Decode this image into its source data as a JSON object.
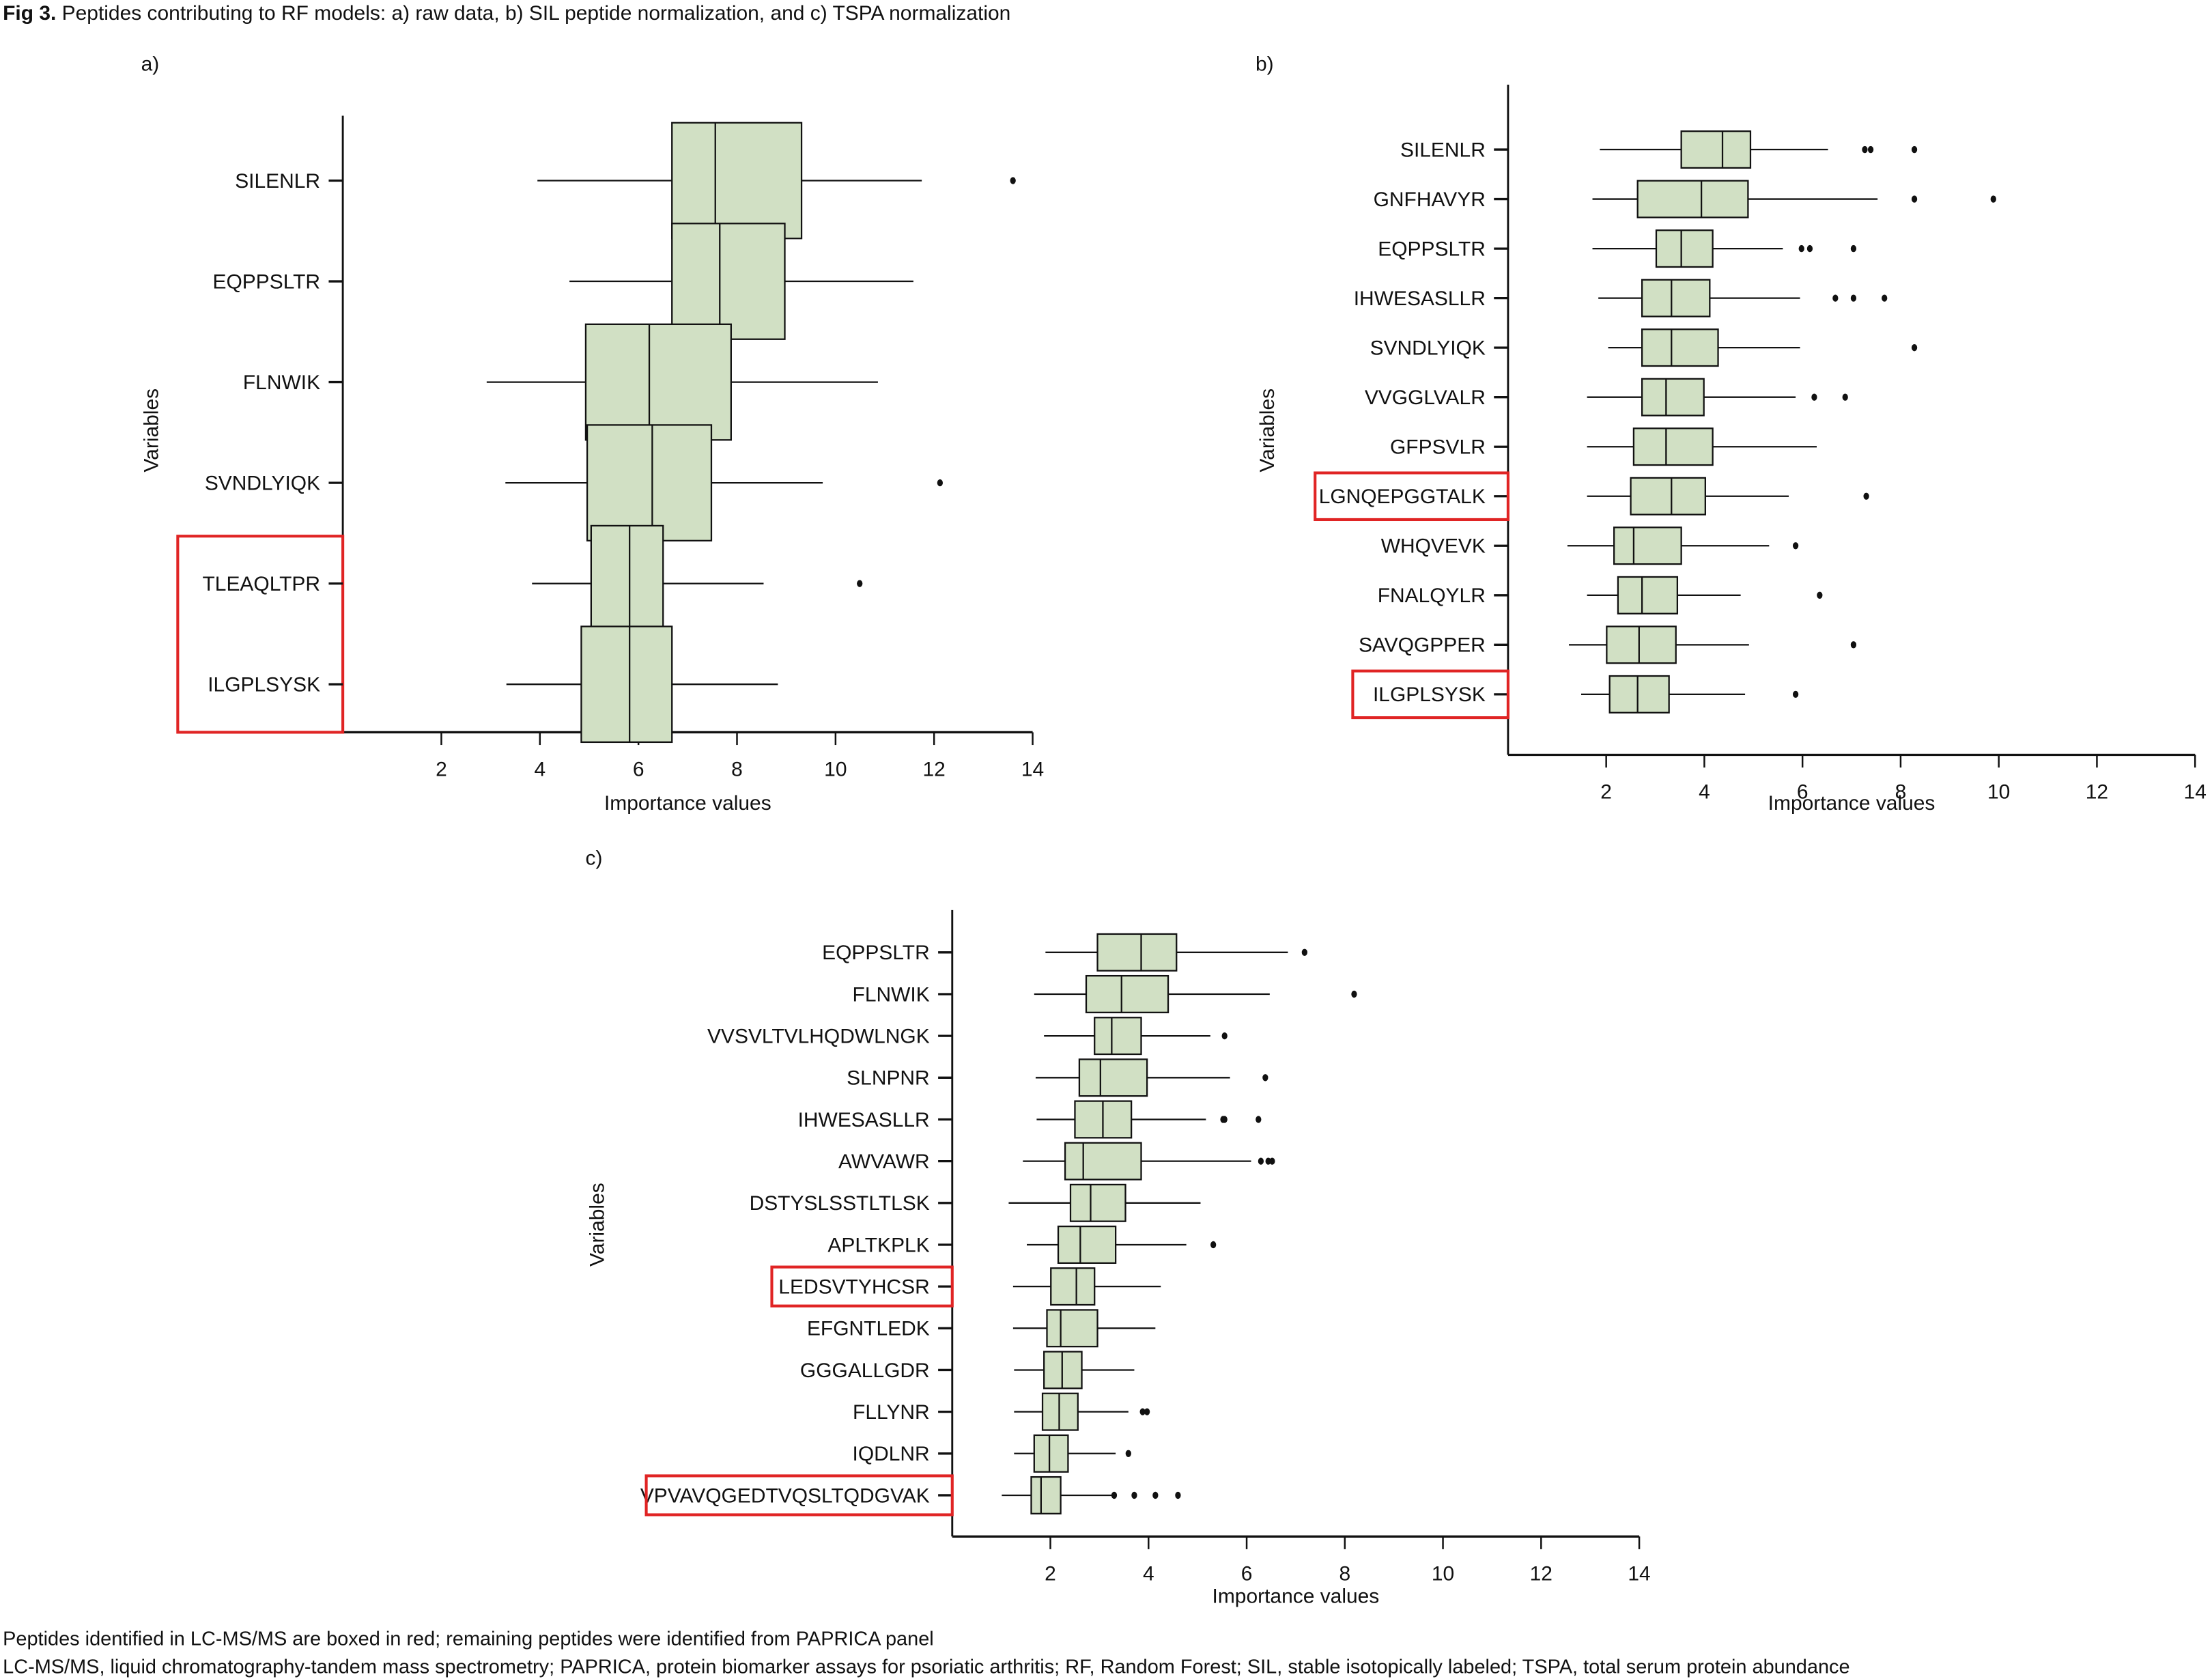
{
  "figure": {
    "title_bold": "Fig 3.",
    "title_rest": " Peptides contributing to RF models: a) raw data, b) SIL peptide normalization, and c) TSPA normalization",
    "footnotes": [
      "Peptides identified in LC-MS/MS are boxed in red; remaining peptides were identified from PAPRICA panel",
      "LC-MS/MS, liquid chromatography-tandem mass spectrometry; PAPRICA, protein biomarker assays for psoriatic arthritis; RF, Random Forest; SIL, stable isotopically labeled; TSPA, total serum protein abundance"
    ],
    "colors": {
      "box_fill": "#d1e0c4",
      "box_stroke": "#111111",
      "highlight_box": "#e02424",
      "axis": "#111111"
    }
  },
  "chart_data": [
    {
      "type": "boxplot",
      "orientation": "horizontal",
      "panel": "a)",
      "title": "",
      "xlabel": "Importance values",
      "ylabel": "Variables",
      "xlim": [
        0,
        14
      ],
      "xticks": [
        2,
        4,
        6,
        8,
        10,
        12,
        14
      ],
      "grid": false,
      "highlighted_categories": [
        "TLEAQLTPR",
        "ILGPLSYSK"
      ],
      "highlight_group_box": true,
      "categories": [
        "SILENLR",
        "EQPPSLTR",
        "FLNWIK",
        "SVNDLYIQK",
        "TLEAQLTPR",
        "ILGPLSYSK"
      ],
      "series": [
        {
          "name": "SILENLR",
          "whisker_low": 3.95,
          "q1": 6.68,
          "median": 7.56,
          "q3": 9.31,
          "whisker_high": 11.75,
          "outliers": [
            13.6
          ]
        },
        {
          "name": "EQPPSLTR",
          "whisker_low": 4.6,
          "q1": 6.68,
          "median": 7.65,
          "q3": 8.97,
          "whisker_high": 11.58,
          "outliers": []
        },
        {
          "name": "FLNWIK",
          "whisker_low": 2.92,
          "q1": 4.93,
          "median": 6.22,
          "q3": 7.88,
          "whisker_high": 10.86,
          "outliers": []
        },
        {
          "name": "SVNDLYIQK",
          "whisker_low": 3.3,
          "q1": 4.96,
          "median": 6.28,
          "q3": 7.48,
          "whisker_high": 9.74,
          "outliers": [
            12.12
          ]
        },
        {
          "name": "TLEAQLTPR",
          "whisker_low": 3.84,
          "q1": 5.04,
          "median": 5.82,
          "q3": 6.5,
          "whisker_high": 8.54,
          "outliers": [
            10.49
          ]
        },
        {
          "name": "ILGPLSYSK",
          "whisker_low": 3.32,
          "q1": 4.84,
          "median": 5.82,
          "q3": 6.68,
          "whisker_high": 8.83,
          "outliers": []
        }
      ]
    },
    {
      "type": "boxplot",
      "orientation": "horizontal",
      "panel": "b)",
      "title": "",
      "xlabel": "Importance values",
      "ylabel": "Variables",
      "xlim": [
        0,
        14
      ],
      "xticks": [
        2,
        4,
        6,
        8,
        10,
        12,
        14
      ],
      "grid": false,
      "highlighted_categories": [
        "LGNQEPGGTALK",
        "ILGPLSYSK"
      ],
      "highlight_group_box": false,
      "categories": [
        "SILENLR",
        "GNFHAVYR",
        "EQPPSLTR",
        "IHWESASLLR",
        "SVNDLYIQK",
        "VVGGLVALR",
        "GFPSVLR",
        "LGNQEPGGTALK",
        "WHQVEVK",
        "FNALQYLR",
        "SAVQGPPER",
        "ILGPLSYSK"
      ],
      "series": [
        {
          "name": "SILENLR",
          "whisker_low": 1.87,
          "q1": 3.53,
          "median": 4.37,
          "q3": 4.94,
          "whisker_high": 6.52,
          "outliers": [
            7.27,
            7.39,
            8.28
          ]
        },
        {
          "name": "GNFHAVYR",
          "whisker_low": 1.72,
          "q1": 2.64,
          "median": 3.94,
          "q3": 4.89,
          "whisker_high": 7.53,
          "outliers": [
            8.28,
            9.89
          ]
        },
        {
          "name": "EQPPSLTR",
          "whisker_low": 1.72,
          "q1": 3.02,
          "median": 3.53,
          "q3": 4.17,
          "whisker_high": 5.6,
          "outliers": [
            5.98,
            6.15,
            7.04
          ]
        },
        {
          "name": "IHWESASLLR",
          "whisker_low": 1.84,
          "q1": 2.73,
          "median": 3.33,
          "q3": 4.11,
          "whisker_high": 5.95,
          "outliers": [
            6.67,
            7.04,
            7.67
          ]
        },
        {
          "name": "SVNDLYIQK",
          "whisker_low": 2.04,
          "q1": 2.73,
          "median": 3.33,
          "q3": 4.28,
          "whisker_high": 5.95,
          "outliers": [
            8.28
          ]
        },
        {
          "name": "VVGGLVALR",
          "whisker_low": 1.61,
          "q1": 2.73,
          "median": 3.22,
          "q3": 3.99,
          "whisker_high": 5.86,
          "outliers": [
            6.24,
            6.87
          ]
        },
        {
          "name": "GFPSVLR",
          "whisker_low": 1.61,
          "q1": 2.56,
          "median": 3.22,
          "q3": 4.17,
          "whisker_high": 6.29,
          "outliers": []
        },
        {
          "name": "LGNQEPGGTALK",
          "whisker_low": 1.61,
          "q1": 2.5,
          "median": 3.33,
          "q3": 4.02,
          "whisker_high": 5.72,
          "outliers": [
            7.3
          ]
        },
        {
          "name": "WHQVEVK",
          "whisker_low": 1.21,
          "q1": 2.16,
          "median": 2.56,
          "q3": 3.53,
          "whisker_high": 5.32,
          "outliers": [
            5.86
          ]
        },
        {
          "name": "FNALQYLR",
          "whisker_low": 1.61,
          "q1": 2.24,
          "median": 2.73,
          "q3": 3.45,
          "whisker_high": 4.74,
          "outliers": [
            6.35
          ]
        },
        {
          "name": "SAVQGPPER",
          "whisker_low": 1.24,
          "q1": 2.01,
          "median": 2.67,
          "q3": 3.42,
          "whisker_high": 4.91,
          "outliers": [
            7.04
          ]
        },
        {
          "name": "ILGPLSYSK",
          "whisker_low": 1.49,
          "q1": 2.07,
          "median": 2.64,
          "q3": 3.28,
          "whisker_high": 4.83,
          "outliers": [
            5.86
          ]
        }
      ]
    },
    {
      "type": "boxplot",
      "orientation": "horizontal",
      "panel": "c)",
      "title": "",
      "xlabel": "Importance values",
      "ylabel": "Variables",
      "xlim": [
        0,
        14
      ],
      "xticks": [
        2,
        4,
        6,
        8,
        10,
        12,
        14
      ],
      "grid": false,
      "highlighted_categories": [
        "LEDSVTYHCSR",
        "VPVAVQGEDTVQSLTQDGVAK"
      ],
      "highlight_group_box": false,
      "categories": [
        "EQPPSLTR",
        "FLNWIK",
        "VVSVLTVLHQDWLNGK",
        "SLNPNR",
        "IHWESASLLR",
        "AWVAWR",
        "DSTYSLSSTLTLSK",
        "APLTKPLK",
        "LEDSVTYHCSR",
        "EFGNTLEDK",
        "GGGALLGDR",
        "FLLYNR",
        "IQDLNR",
        "VPVAVQGEDTVQSLTQDGVAK"
      ],
      "series": [
        {
          "name": "EQPPSLTR",
          "whisker_low": 1.9,
          "q1": 2.96,
          "median": 3.85,
          "q3": 4.57,
          "whisker_high": 6.84,
          "outliers": [
            7.18
          ]
        },
        {
          "name": "FLNWIK",
          "whisker_low": 1.67,
          "q1": 2.73,
          "median": 3.45,
          "q3": 4.4,
          "whisker_high": 6.47,
          "outliers": [
            8.19
          ]
        },
        {
          "name": "VVSVLTVLHQDWLNGK",
          "whisker_low": 1.87,
          "q1": 2.9,
          "median": 3.25,
          "q3": 3.85,
          "whisker_high": 5.26,
          "outliers": [
            5.55
          ]
        },
        {
          "name": "SLNPNR",
          "whisker_low": 1.7,
          "q1": 2.59,
          "median": 3.02,
          "q3": 3.97,
          "whisker_high": 5.66,
          "outliers": [
            6.38
          ]
        },
        {
          "name": "IHWESASLLR",
          "whisker_low": 1.72,
          "q1": 2.5,
          "median": 3.07,
          "q3": 3.65,
          "whisker_high": 5.17,
          "outliers": [
            5.52,
            5.55,
            6.24
          ]
        },
        {
          "name": "AWVAWR",
          "whisker_low": 1.44,
          "q1": 2.3,
          "median": 2.67,
          "q3": 3.85,
          "whisker_high": 6.09,
          "outliers": [
            6.29,
            6.44,
            6.52
          ]
        },
        {
          "name": "DSTYSLSSTLTLSK",
          "whisker_low": 1.15,
          "q1": 2.41,
          "median": 2.82,
          "q3": 3.53,
          "whisker_high": 5.06,
          "outliers": []
        },
        {
          "name": "APLTKPLK",
          "whisker_low": 1.52,
          "q1": 2.16,
          "median": 2.61,
          "q3": 3.33,
          "whisker_high": 4.77,
          "outliers": [
            5.32
          ]
        },
        {
          "name": "LEDSVTYHCSR",
          "whisker_low": 1.24,
          "q1": 2.01,
          "median": 2.53,
          "q3": 2.9,
          "whisker_high": 4.25,
          "outliers": []
        },
        {
          "name": "EFGNTLEDK",
          "whisker_low": 1.24,
          "q1": 1.93,
          "median": 2.21,
          "q3": 2.96,
          "whisker_high": 4.14,
          "outliers": []
        },
        {
          "name": "GGGALLGDR",
          "whisker_low": 1.26,
          "q1": 1.87,
          "median": 2.24,
          "q3": 2.64,
          "whisker_high": 3.71,
          "outliers": []
        },
        {
          "name": "FLLYNR",
          "whisker_low": 1.26,
          "q1": 1.84,
          "median": 2.18,
          "q3": 2.56,
          "whisker_high": 3.59,
          "outliers": [
            3.88,
            3.97
          ]
        },
        {
          "name": "IQDLNR",
          "whisker_low": 1.26,
          "q1": 1.67,
          "median": 1.98,
          "q3": 2.36,
          "whisker_high": 3.33,
          "outliers": [
            3.59
          ]
        },
        {
          "name": "VPVAVQGEDTVQSLTQDGVAK",
          "whisker_low": 1.01,
          "q1": 1.61,
          "median": 1.81,
          "q3": 2.21,
          "whisker_high": 3.3,
          "outliers": [
            3.3,
            3.71,
            4.14,
            4.6
          ]
        }
      ]
    }
  ]
}
